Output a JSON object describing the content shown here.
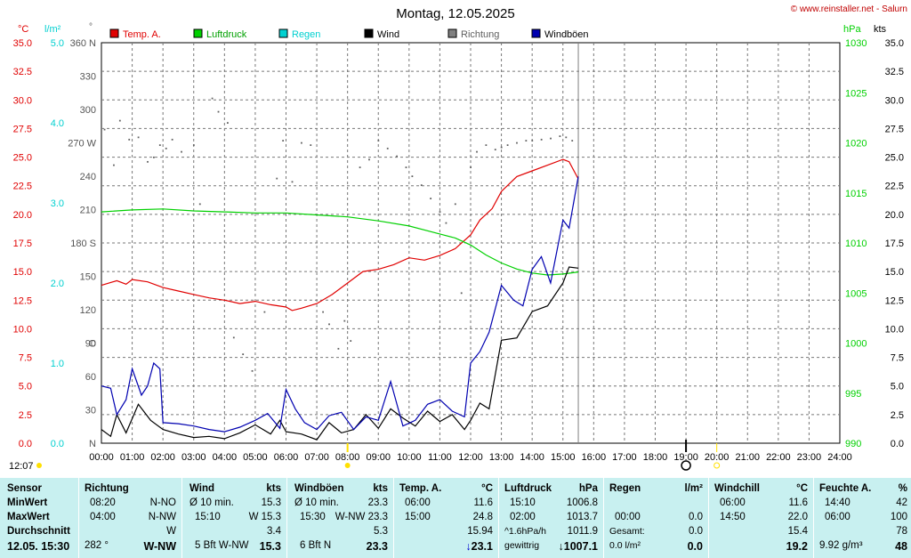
{
  "title": "Montag, 12.05.2025",
  "copyright": "© www.reinstaller.net - Salurn",
  "axis_units": {
    "left_temp": "°C",
    "left_rain": "l/m²",
    "left_dir": "°",
    "right_pressure": "hPa",
    "right_kts": "kts"
  },
  "colors": {
    "temp": "#e00000",
    "pressure": "#00d000",
    "rain": "#00d0d0",
    "wind": "#000000",
    "direction": "#808080",
    "gusts": "#0000b0"
  },
  "legend": [
    {
      "label": "Temp. A.",
      "color": "#e00000"
    },
    {
      "label": "Luftdruck",
      "color": "#00d000"
    },
    {
      "label": "Regen",
      "color": "#00d0d0"
    },
    {
      "label": "Wind",
      "color": "#000000"
    },
    {
      "label": "Richtung",
      "color": "#808080"
    },
    {
      "label": "Windböen",
      "color": "#0000b0"
    }
  ],
  "sunrise_label": "12:07",
  "chart_data": {
    "type": "line",
    "x_range": [
      "00:00",
      "24:00"
    ],
    "x_ticks": [
      "00:00",
      "01:00",
      "02:00",
      "03:00",
      "04:00",
      "05:00",
      "06:00",
      "07:00",
      "08:00",
      "09:00",
      "10:00",
      "11:00",
      "12:00",
      "13:00",
      "14:00",
      "15:00",
      "16:00",
      "17:00",
      "18:00",
      "19:00",
      "20:00",
      "21:00",
      "22:00",
      "23:00",
      "24:00"
    ],
    "temp_axis": {
      "range": [
        0,
        35
      ],
      "ticks": [
        "0.0",
        "2.5",
        "5.0",
        "7.5",
        "10.0",
        "12.5",
        "15.0",
        "17.5",
        "20.0",
        "22.5",
        "25.0",
        "27.5",
        "30.0",
        "32.5",
        "35.0"
      ]
    },
    "rain_axis": {
      "range": [
        0,
        5
      ],
      "ticks": [
        "0.0",
        "1.0",
        "2.0",
        "3.0",
        "4.0",
        "5.0"
      ]
    },
    "dir_axis": {
      "range": [
        0,
        360
      ],
      "ticks": [
        "N",
        "30",
        "60",
        "90",
        "120",
        "150",
        "180 S",
        "210",
        "240",
        "270 W",
        "300",
        "330",
        "360 N"
      ],
      "extra_labels": [
        {
          "label": "O",
          "value": 90
        }
      ]
    },
    "pressure_axis": {
      "range": [
        990,
        1030
      ],
      "ticks": [
        "990",
        "995",
        "1000",
        "1005",
        "1010",
        "1015",
        "1020",
        "1025",
        "1030"
      ]
    },
    "kts_axis": {
      "range": [
        0,
        35
      ],
      "ticks": [
        "0.0",
        "2.5",
        "5.0",
        "7.5",
        "10.0",
        "12.5",
        "15.0",
        "17.5",
        "20.0",
        "22.5",
        "25.0",
        "27.5",
        "30.0",
        "32.5",
        "35.0"
      ]
    },
    "now_hour": 15.5,
    "series": [
      {
        "name": "Temp. A.",
        "axis": "temp",
        "points": [
          [
            0,
            13.8
          ],
          [
            0.5,
            14.2
          ],
          [
            0.8,
            13.9
          ],
          [
            1,
            14.3
          ],
          [
            1.5,
            14.1
          ],
          [
            2,
            13.6
          ],
          [
            2.5,
            13.3
          ],
          [
            3,
            13.0
          ],
          [
            3.5,
            12.7
          ],
          [
            4,
            12.5
          ],
          [
            4.5,
            12.2
          ],
          [
            5,
            12.4
          ],
          [
            5.5,
            12.1
          ],
          [
            6,
            11.9
          ],
          [
            6.2,
            11.6
          ],
          [
            6.5,
            11.8
          ],
          [
            7,
            12.2
          ],
          [
            7.5,
            13.0
          ],
          [
            8,
            14.0
          ],
          [
            8.5,
            15.0
          ],
          [
            9,
            15.2
          ],
          [
            9.5,
            15.6
          ],
          [
            10,
            16.2
          ],
          [
            10.5,
            16.0
          ],
          [
            11,
            16.4
          ],
          [
            11.5,
            17.0
          ],
          [
            12,
            18.2
          ],
          [
            12.3,
            19.5
          ],
          [
            12.7,
            20.5
          ],
          [
            13,
            22.0
          ],
          [
            13.5,
            23.3
          ],
          [
            14,
            23.8
          ],
          [
            14.5,
            24.3
          ],
          [
            15,
            24.8
          ],
          [
            15.2,
            24.6
          ],
          [
            15.5,
            23.1
          ]
        ]
      },
      {
        "name": "Luftdruck",
        "axis": "pressure",
        "points": [
          [
            0,
            1013.1
          ],
          [
            1,
            1013.3
          ],
          [
            2,
            1013.4
          ],
          [
            3,
            1013.2
          ],
          [
            4,
            1013.1
          ],
          [
            5,
            1013.0
          ],
          [
            6,
            1013.0
          ],
          [
            7,
            1012.8
          ],
          [
            8,
            1012.6
          ],
          [
            9,
            1012.2
          ],
          [
            10,
            1011.7
          ],
          [
            11,
            1010.9
          ],
          [
            11.5,
            1010.5
          ],
          [
            12,
            1009.8
          ],
          [
            12.5,
            1008.8
          ],
          [
            13,
            1008.0
          ],
          [
            13.5,
            1007.4
          ],
          [
            14,
            1007.0
          ],
          [
            14.5,
            1006.8
          ],
          [
            15,
            1006.9
          ],
          [
            15.5,
            1007.1
          ]
        ]
      },
      {
        "name": "Wind",
        "axis": "kts",
        "points": [
          [
            0,
            1.2
          ],
          [
            0.3,
            0.6
          ],
          [
            0.5,
            2.5
          ],
          [
            0.8,
            0.9
          ],
          [
            1.2,
            3.4
          ],
          [
            1.6,
            2.0
          ],
          [
            2,
            1.2
          ],
          [
            2.5,
            0.8
          ],
          [
            3,
            0.5
          ],
          [
            3.5,
            0.6
          ],
          [
            4,
            0.4
          ],
          [
            4.5,
            0.9
          ],
          [
            5,
            1.6
          ],
          [
            5.5,
            0.8
          ],
          [
            5.8,
            2.0
          ],
          [
            6,
            1.0
          ],
          [
            6.5,
            0.8
          ],
          [
            7,
            0.3
          ],
          [
            7.4,
            1.8
          ],
          [
            7.8,
            0.9
          ],
          [
            8.2,
            1.2
          ],
          [
            8.6,
            2.5
          ],
          [
            9,
            1.3
          ],
          [
            9.4,
            3.0
          ],
          [
            9.8,
            2.2
          ],
          [
            10.2,
            1.5
          ],
          [
            10.6,
            2.8
          ],
          [
            11,
            1.9
          ],
          [
            11.4,
            2.5
          ],
          [
            11.8,
            1.2
          ],
          [
            12,
            2.0
          ],
          [
            12.3,
            3.5
          ],
          [
            12.6,
            3.0
          ],
          [
            13,
            9.0
          ],
          [
            13.5,
            9.2
          ],
          [
            14,
            11.5
          ],
          [
            14.5,
            12.0
          ],
          [
            15,
            14.0
          ],
          [
            15.2,
            15.4
          ],
          [
            15.5,
            15.3
          ]
        ]
      },
      {
        "name": "Windböen",
        "axis": "kts",
        "points": [
          [
            0,
            5.0
          ],
          [
            0.3,
            4.8
          ],
          [
            0.5,
            2.5
          ],
          [
            0.8,
            3.8
          ],
          [
            1,
            6.5
          ],
          [
            1.3,
            4.2
          ],
          [
            1.5,
            5.0
          ],
          [
            1.7,
            7.0
          ],
          [
            1.9,
            6.5
          ],
          [
            2,
            1.8
          ],
          [
            2.5,
            1.7
          ],
          [
            3,
            1.5
          ],
          [
            3.5,
            1.2
          ],
          [
            4,
            1.0
          ],
          [
            4.5,
            1.4
          ],
          [
            5,
            2.0
          ],
          [
            5.4,
            2.6
          ],
          [
            5.8,
            1.3
          ],
          [
            6,
            4.7
          ],
          [
            6.3,
            3.0
          ],
          [
            6.6,
            1.8
          ],
          [
            7,
            1.2
          ],
          [
            7.4,
            2.4
          ],
          [
            7.8,
            2.7
          ],
          [
            8.2,
            1.2
          ],
          [
            8.6,
            2.3
          ],
          [
            9,
            2.0
          ],
          [
            9.4,
            5.4
          ],
          [
            9.8,
            1.5
          ],
          [
            10.2,
            2.0
          ],
          [
            10.6,
            3.4
          ],
          [
            11,
            3.8
          ],
          [
            11.4,
            2.8
          ],
          [
            11.8,
            2.3
          ],
          [
            12,
            7.0
          ],
          [
            12.3,
            8.0
          ],
          [
            12.6,
            9.7
          ],
          [
            13,
            13.8
          ],
          [
            13.4,
            12.5
          ],
          [
            13.7,
            12.0
          ],
          [
            14,
            15.2
          ],
          [
            14.3,
            16.3
          ],
          [
            14.6,
            14.0
          ],
          [
            15,
            19.5
          ],
          [
            15.2,
            18.8
          ],
          [
            15.5,
            23.3
          ]
        ]
      }
    ],
    "direction_points": [
      [
        0.1,
        282
      ],
      [
        0.4,
        250
      ],
      [
        0.6,
        290
      ],
      [
        0.9,
        273
      ],
      [
        1.2,
        275
      ],
      [
        1.5,
        253
      ],
      [
        1.7,
        257
      ],
      [
        1.9,
        268
      ],
      [
        2.1,
        265
      ],
      [
        2.3,
        273
      ],
      [
        2.6,
        262
      ],
      [
        3.0,
        268
      ],
      [
        3.2,
        215
      ],
      [
        3.6,
        310
      ],
      [
        3.8,
        298
      ],
      [
        4.1,
        288
      ],
      [
        4.3,
        95
      ],
      [
        4.6,
        80
      ],
      [
        4.9,
        65
      ],
      [
        5.3,
        118
      ],
      [
        5.7,
        238
      ],
      [
        5.9,
        272
      ],
      [
        6.2,
        235
      ],
      [
        6.5,
        270
      ],
      [
        6.8,
        268
      ],
      [
        7.2,
        118
      ],
      [
        7.4,
        107
      ],
      [
        7.7,
        85
      ],
      [
        7.9,
        110
      ],
      [
        8.1,
        92
      ],
      [
        8.4,
        248
      ],
      [
        8.7,
        255
      ],
      [
        9.0,
        272
      ],
      [
        9.3,
        265
      ],
      [
        9.6,
        258
      ],
      [
        9.9,
        248
      ],
      [
        10.1,
        240
      ],
      [
        10.4,
        232
      ],
      [
        10.7,
        220
      ],
      [
        11.0,
        208
      ],
      [
        11.2,
        198
      ],
      [
        11.5,
        215
      ],
      [
        11.7,
        135
      ],
      [
        12.0,
        248
      ],
      [
        12.2,
        262
      ],
      [
        12.5,
        268
      ],
      [
        12.8,
        264
      ],
      [
        13.0,
        266
      ],
      [
        13.2,
        268
      ],
      [
        13.5,
        270
      ],
      [
        13.8,
        272
      ],
      [
        14.0,
        272
      ],
      [
        14.3,
        273
      ],
      [
        14.6,
        274
      ],
      [
        14.9,
        276
      ],
      [
        15.1,
        275
      ],
      [
        15.3,
        272
      ]
    ]
  },
  "table": {
    "sensor": {
      "header": "Sensor",
      "rows": [
        "MinWert",
        "MaxWert",
        "Durchschnitt"
      ],
      "current": "12.05. 15:30"
    },
    "richtung": {
      "header": "Richtung",
      "rows": [
        [
          "08:20",
          "N-NO"
        ],
        [
          "04:00",
          "N-NW"
        ],
        [
          "",
          "W"
        ]
      ],
      "current": [
        "282 °",
        "W-NW"
      ]
    },
    "wind": {
      "header": "Wind",
      "unit": "kts",
      "rows": [
        [
          "Ø 10 min.",
          "15.3"
        ],
        [
          "15:10",
          "W 15.3"
        ],
        [
          "",
          "3.4"
        ]
      ],
      "current": [
        "5 Bft W-NW",
        "15.3"
      ]
    },
    "boeen": {
      "header": "Windböen",
      "unit": "kts",
      "rows": [
        [
          "Ø 10 min.",
          "23.3"
        ],
        [
          "15:30",
          "W-NW 23.3"
        ],
        [
          "",
          "5.3"
        ]
      ],
      "current": [
        "6 Bft N",
        "23.3"
      ]
    },
    "temp": {
      "header": "Temp. A.",
      "unit": "°C",
      "rows": [
        [
          "06:00",
          "11.6"
        ],
        [
          "15:00",
          "24.8"
        ],
        [
          "",
          "15.94"
        ]
      ],
      "current": "23.1",
      "current_arrow": "↓"
    },
    "druck": {
      "header": "Luftdruck",
      "unit": "hPa",
      "rows": [
        [
          "15:10",
          "1006.8"
        ],
        [
          "02:00",
          "1013.7"
        ],
        [
          "^1.6hPa/h",
          "1011.9"
        ]
      ],
      "current_label": "gewittrig",
      "current": "1007.1",
      "current_arrow": "↓"
    },
    "regen": {
      "header": "Regen",
      "unit": "l/m²",
      "rows": [
        [
          "",
          ""
        ],
        [
          "00:00",
          "0.0"
        ],
        [
          "Gesamt:",
          "0.0"
        ]
      ],
      "current_label": "0.0 l/m²",
      "current": "0.0"
    },
    "chill": {
      "header": "Windchill",
      "unit": "°C",
      "rows": [
        [
          "06:00",
          "11.6"
        ],
        [
          "14:50",
          "22.0"
        ],
        [
          "",
          "15.4"
        ]
      ],
      "current": "19.2"
    },
    "feuchte": {
      "header": "Feuchte A.",
      "unit": "%",
      "rows": [
        [
          "14:40",
          "42"
        ],
        [
          "06:00",
          "100"
        ],
        [
          "",
          "78"
        ]
      ],
      "current_label": "9.92 g/m³",
      "current": "48"
    }
  }
}
